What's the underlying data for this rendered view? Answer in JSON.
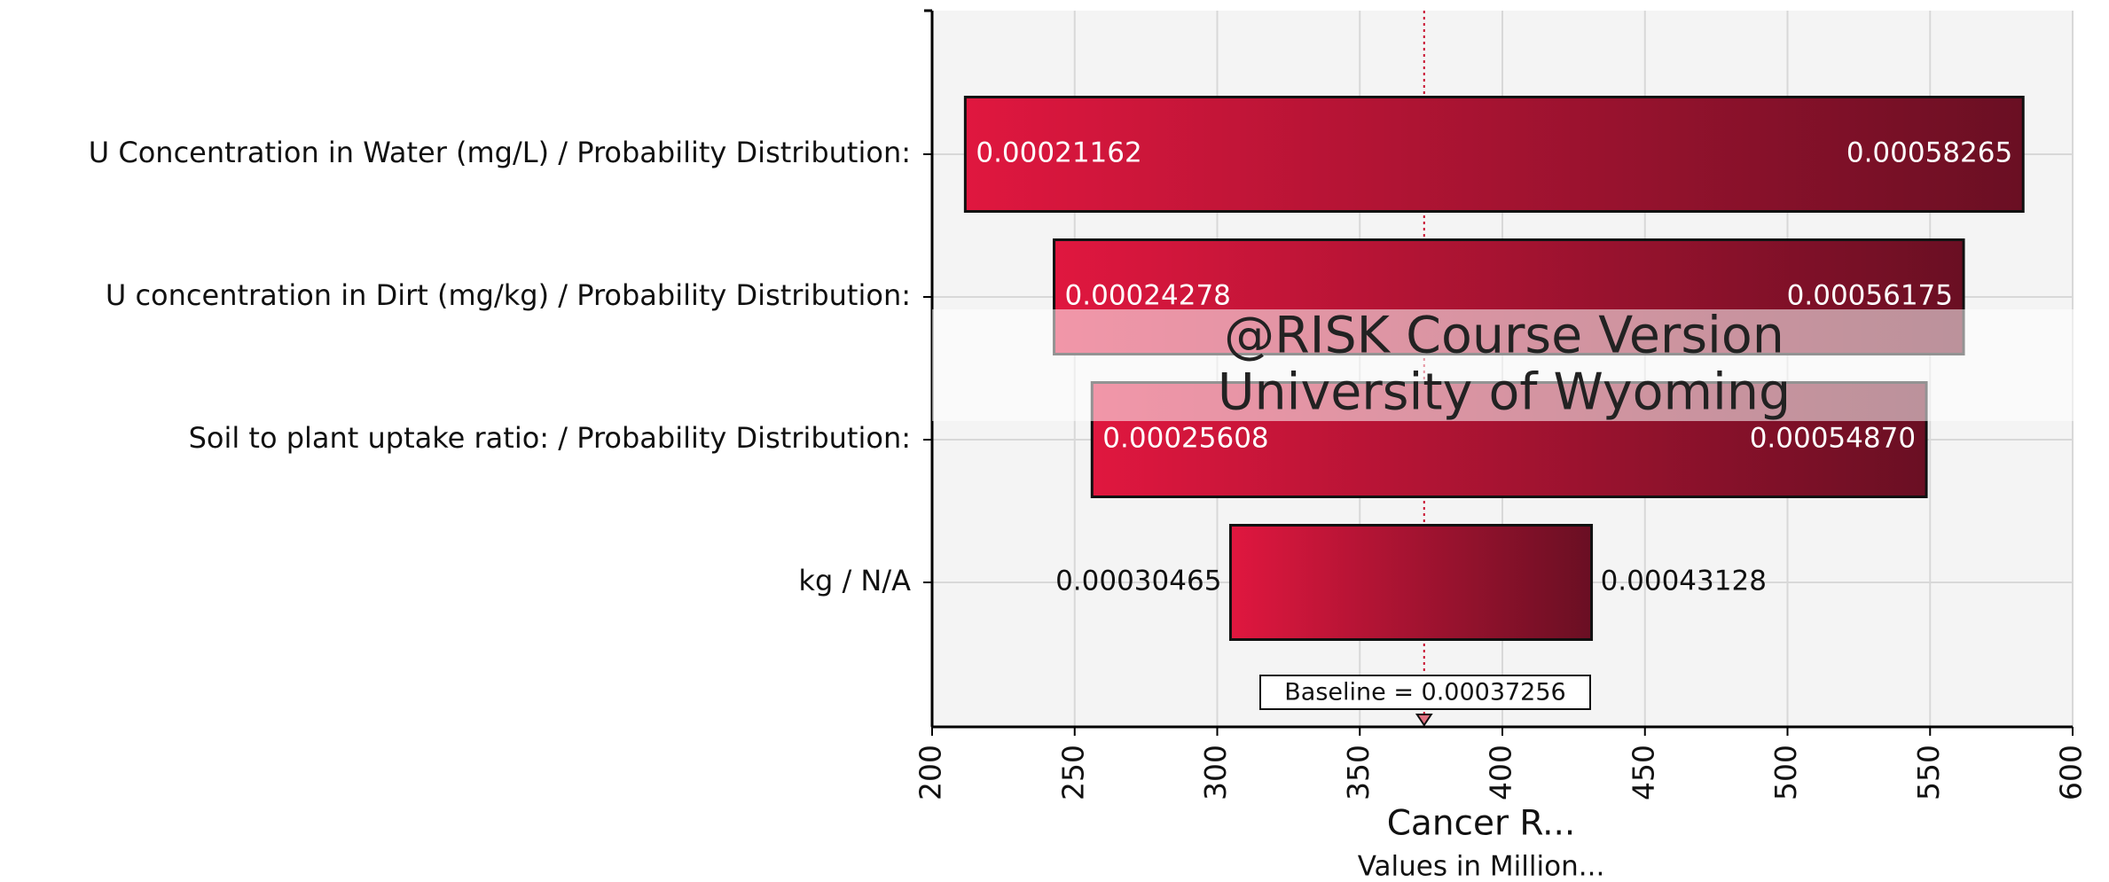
{
  "chart_data": {
    "type": "tornado",
    "categories": [
      "U Concentration in Water (mg/L) / Probability Distribution:",
      "U concentration in Dirt (mg/kg) / Probability Distribution:",
      "Soil to plant uptake ratio: / Probability Distribution:",
      "kg / N/A"
    ],
    "low_values": [
      211.62,
      242.78,
      256.08,
      304.65
    ],
    "low_labels": [
      "0.00021162",
      "0.00024278",
      "0.00025608",
      "0.00030465"
    ],
    "high_values": [
      582.65,
      561.75,
      548.7,
      431.28
    ],
    "high_labels": [
      "0.00058265",
      "0.00056175",
      "0.00054870",
      "0.00043128"
    ],
    "baseline": 372.56,
    "baseline_label": "Baseline = 0.00037256",
    "colors": [
      "#e0173f",
      "#6a0f23"
    ],
    "xlim": [
      200,
      600
    ],
    "xticks": [
      200,
      250,
      300,
      350,
      400,
      450,
      500,
      550,
      600
    ],
    "grid": true,
    "xlabel": "Cancer R...",
    "xsublabel": "Values in Million...",
    "watermark": [
      "@RISK Course Version",
      "University of Wyoming"
    ]
  }
}
